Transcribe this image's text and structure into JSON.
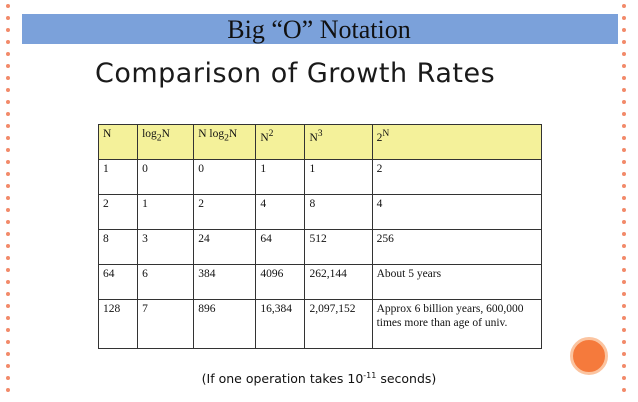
{
  "slide": {
    "title": "Big “O” Notation",
    "subtitle": "Comparison of Growth Rates",
    "footnote_prefix": "(If one operation takes 10",
    "footnote_exponent": "-11",
    "footnote_suffix": " seconds)"
  },
  "table": {
    "headers": [
      {
        "base": "N",
        "sub": "",
        "suffix": "",
        "sup": ""
      },
      {
        "base": "log",
        "sub": "2",
        "suffix": "N",
        "sup": ""
      },
      {
        "base": "N log",
        "sub": "2",
        "suffix": "N",
        "sup": ""
      },
      {
        "base": "N",
        "sub": "",
        "suffix": "",
        "sup": "2"
      },
      {
        "base": "N",
        "sub": "",
        "suffix": "",
        "sup": "3"
      },
      {
        "base": "2",
        "sub": "",
        "suffix": "",
        "sup": "N"
      }
    ],
    "rows": [
      [
        "1",
        "0",
        "0",
        "1",
        "1",
        "2"
      ],
      [
        "2",
        "1",
        "2",
        "4",
        "8",
        "4"
      ],
      [
        "8",
        "3",
        "24",
        "64",
        "512",
        "256"
      ],
      [
        "64",
        "6",
        "384",
        "4096",
        "262,144",
        "About 5 years"
      ],
      [
        "128",
        "7",
        "896",
        "16,384",
        "2,097,152",
        "Approx 6 billion years, 600,000 times more than age of univ."
      ]
    ]
  },
  "colors": {
    "title_bar": "#7ba1da",
    "header_row": "#f4f19a",
    "accent": "#f57a3c"
  }
}
